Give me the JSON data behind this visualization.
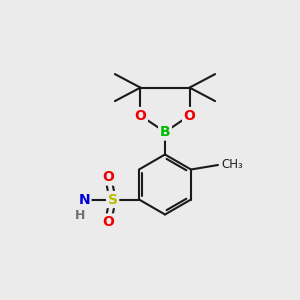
{
  "background_color": "#ebebeb",
  "atom_colors": {
    "B": "#00bb00",
    "O": "#ee0000",
    "S": "#bbbb00",
    "N": "#0000dd",
    "C": "#202020",
    "H": "#707070"
  },
  "bond_color": "#1a1a1a",
  "bond_width": 1.5,
  "font_size_atom": 10,
  "font_size_methyl": 8.5
}
